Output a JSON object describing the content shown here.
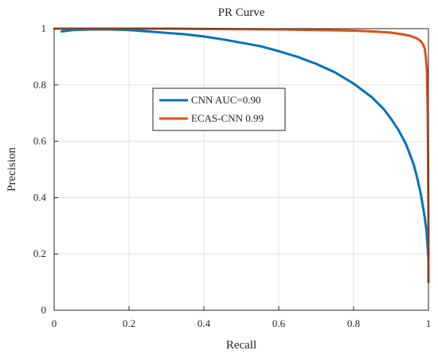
{
  "chart_data": {
    "type": "line",
    "title": "PR Curve",
    "xlabel": "Recall",
    "ylabel": "Precision",
    "xlim": [
      0,
      1
    ],
    "ylim": [
      0,
      1
    ],
    "grid": true,
    "legend_position": "upper-left-center",
    "x_ticks": [
      "0",
      "0.2",
      "0.4",
      "0.6",
      "0.8",
      "1"
    ],
    "y_ticks": [
      "0",
      "0.2",
      "0.4",
      "0.6",
      "0.8",
      "1"
    ],
    "series": [
      {
        "name": "CNN AUC=0.90",
        "color": "#0072BD",
        "x": [
          0.02,
          0.05,
          0.1,
          0.15,
          0.2,
          0.25,
          0.3,
          0.35,
          0.4,
          0.45,
          0.5,
          0.55,
          0.6,
          0.65,
          0.7,
          0.75,
          0.8,
          0.85,
          0.88,
          0.9,
          0.92,
          0.94,
          0.96,
          0.97,
          0.98,
          0.985,
          0.99,
          0.995,
          1.0
        ],
        "y": [
          0.99,
          0.995,
          0.997,
          0.997,
          0.995,
          0.99,
          0.985,
          0.98,
          0.972,
          0.962,
          0.95,
          0.938,
          0.92,
          0.9,
          0.875,
          0.845,
          0.805,
          0.755,
          0.715,
          0.68,
          0.64,
          0.59,
          0.52,
          0.47,
          0.41,
          0.37,
          0.33,
          0.28,
          0.18
        ]
      },
      {
        "name": "ECAS-CNN 0.99",
        "color": "#D95319",
        "x": [
          0.0,
          0.1,
          0.2,
          0.3,
          0.4,
          0.5,
          0.6,
          0.7,
          0.8,
          0.85,
          0.9,
          0.93,
          0.95,
          0.97,
          0.98,
          0.985,
          0.99,
          0.993,
          0.996,
          0.998,
          0.999,
          1.0,
          1.0
        ],
        "y": [
          1.0,
          1.0,
          1.0,
          1.0,
          0.999,
          0.998,
          0.997,
          0.995,
          0.993,
          0.99,
          0.986,
          0.98,
          0.975,
          0.965,
          0.955,
          0.945,
          0.93,
          0.9,
          0.85,
          0.7,
          0.5,
          0.3,
          0.1
        ]
      }
    ]
  }
}
